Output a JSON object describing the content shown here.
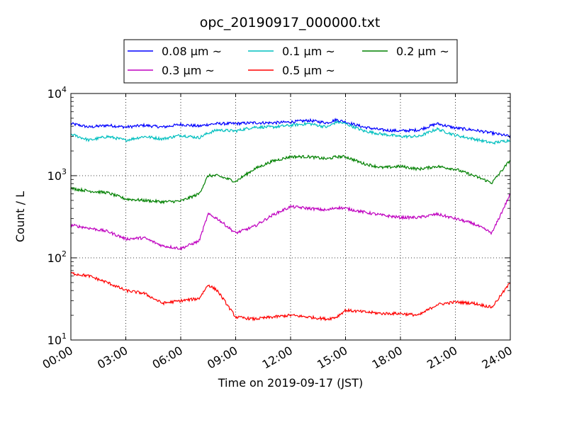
{
  "chart_data": {
    "type": "line",
    "title": "opc_20190917_000000.txt",
    "xlabel": "Time on 2019-09-17 (JST)",
    "ylabel": "Count / L",
    "xlim": [
      "00:00",
      "24:00"
    ],
    "ylim": [
      10,
      10000
    ],
    "yscale": "log",
    "grid": true,
    "grid_style": "dotted",
    "legend_position": "top-center",
    "legend_columns": 3,
    "x_ticks": [
      "00:00",
      "03:00",
      "06:00",
      "09:00",
      "12:00",
      "15:00",
      "18:00",
      "21:00",
      "24:00"
    ],
    "y_ticks": [
      {
        "value": 10,
        "base": "10",
        "exp": "1"
      },
      {
        "value": 100,
        "base": "10",
        "exp": "2"
      },
      {
        "value": 1000,
        "base": "10",
        "exp": "3"
      },
      {
        "value": 10000,
        "base": "10",
        "exp": "4"
      }
    ],
    "x": [
      "00:00",
      "01:00",
      "02:00",
      "03:00",
      "04:00",
      "05:00",
      "06:00",
      "07:00",
      "07:30",
      "08:00",
      "09:00",
      "10:00",
      "11:00",
      "12:00",
      "13:00",
      "14:00",
      "14:30",
      "15:00",
      "16:00",
      "17:00",
      "18:00",
      "19:00",
      "20:00",
      "21:00",
      "22:00",
      "23:00",
      "24:00"
    ],
    "series": [
      {
        "name": "0.08 μm ~",
        "color": "#0000ff",
        "values": [
          4300,
          3900,
          4100,
          3900,
          4100,
          3900,
          4200,
          4000,
          4200,
          4300,
          4300,
          4400,
          4400,
          4500,
          4700,
          4400,
          4800,
          4500,
          3900,
          3600,
          3500,
          3600,
          4300,
          3800,
          3600,
          3300,
          3000
        ]
      },
      {
        "name": "0.1 μm ~",
        "color": "#00bfbf",
        "values": [
          3200,
          2700,
          3000,
          2700,
          3000,
          2800,
          3100,
          2900,
          3300,
          3600,
          3500,
          3900,
          3900,
          4100,
          4300,
          3900,
          4500,
          4300,
          3500,
          3200,
          3000,
          3000,
          3700,
          3100,
          2800,
          2500,
          2700
        ]
      },
      {
        "name": "0.2 μm ~",
        "color": "#008000",
        "values": [
          700,
          650,
          620,
          520,
          500,
          480,
          490,
          600,
          1000,
          1000,
          850,
          1200,
          1500,
          1700,
          1700,
          1600,
          1700,
          1700,
          1400,
          1250,
          1300,
          1200,
          1300,
          1200,
          1000,
          820,
          1550
        ]
      },
      {
        "name": "0.3 μm ~",
        "color": "#bf00bf",
        "values": [
          250,
          230,
          210,
          170,
          175,
          140,
          130,
          160,
          340,
          300,
          200,
          240,
          330,
          420,
          400,
          380,
          410,
          400,
          360,
          330,
          310,
          310,
          340,
          300,
          260,
          200,
          600
        ]
      },
      {
        "name": "0.5 μm ~",
        "color": "#ff0000",
        "values": [
          65,
          60,
          50,
          40,
          37,
          28,
          30,
          32,
          47,
          40,
          19,
          18,
          19,
          20,
          19,
          18,
          19,
          23,
          22,
          21,
          21,
          20,
          27,
          29,
          28,
          25,
          50
        ]
      }
    ]
  }
}
